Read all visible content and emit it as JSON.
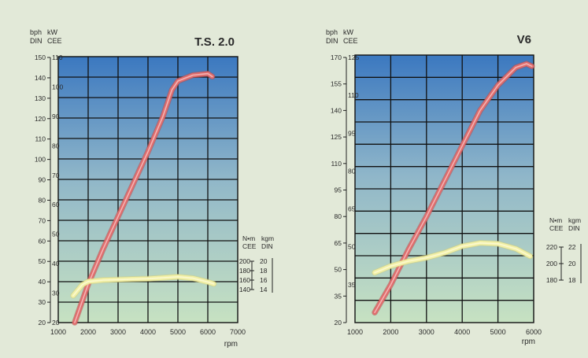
{
  "chart_data": [
    {
      "type": "line",
      "title": "T.S. 2.0",
      "xlabel": "rpm",
      "x_ticks": [
        "1000",
        "2000",
        "3000",
        "4000",
        "5000",
        "6000",
        "7000"
      ],
      "xlim": [
        1000,
        7000
      ],
      "left_axis_units": {
        "outer": [
          "bph",
          "DIN"
        ],
        "inner": [
          "kW",
          "CEE"
        ]
      },
      "left_outer_ticks": [
        "20",
        "30",
        "40",
        "50",
        "60",
        "70",
        "80",
        "90",
        "100",
        "110",
        "120",
        "130",
        "140",
        "150"
      ],
      "left_inner_ticks": [
        "20",
        "30",
        "40",
        "50",
        "60",
        "70",
        "80",
        "90",
        "100",
        "110"
      ],
      "left_outer_range": [
        20,
        150
      ],
      "left_inner_range": [
        20,
        110
      ],
      "torque_axis_units": {
        "outer": [
          "N•m",
          "CEE"
        ],
        "inner": [
          "kgm",
          "DIN"
        ]
      },
      "torque_outer_ticks": [
        "200",
        "180",
        "160",
        "140"
      ],
      "torque_inner_ticks": [
        "20",
        "18",
        "16",
        "14"
      ],
      "grid": true,
      "series": [
        {
          "axis": "power_kw",
          "color": "#e06c6c",
          "points": [
            [
              1550,
              20
            ],
            [
              2000,
              33
            ],
            [
              2500,
              45
            ],
            [
              3000,
              56
            ],
            [
              3500,
              67
            ],
            [
              4000,
              78
            ],
            [
              4500,
              90
            ],
            [
              4800,
              99
            ],
            [
              5000,
              102
            ],
            [
              5500,
              104
            ],
            [
              6000,
              104.5
            ],
            [
              6150,
              103.5
            ]
          ]
        },
        {
          "axis": "torque_nm",
          "color": "#f2f0a6",
          "points": [
            [
              1500,
              127
            ],
            [
              1800,
              150
            ],
            [
              2000,
              157
            ],
            [
              2500,
              160
            ],
            [
              3000,
              161
            ],
            [
              3500,
              162
            ],
            [
              4000,
              163
            ],
            [
              4500,
              165
            ],
            [
              5000,
              167
            ],
            [
              5500,
              164
            ],
            [
              6000,
              156
            ],
            [
              6200,
              152
            ]
          ]
        }
      ]
    },
    {
      "type": "line",
      "title": "V6",
      "xlabel": "rpm",
      "x_ticks": [
        "1000",
        "2000",
        "3000",
        "4000",
        "5000",
        "6000"
      ],
      "xlim": [
        1000,
        6000
      ],
      "left_axis_units": {
        "outer": [
          "bph",
          "DIN"
        ],
        "inner": [
          "kW",
          "CEE"
        ]
      },
      "left_outer_ticks": [
        "20",
        "35",
        "50",
        "65",
        "80",
        "95",
        "110",
        "125",
        "140",
        "155",
        "170"
      ],
      "left_inner_ticks": [
        "35",
        "50",
        "65",
        "80",
        "95",
        "110",
        "125"
      ],
      "left_outer_range": [
        20,
        170
      ],
      "left_inner_range": [
        20,
        125
      ],
      "torque_axis_units": {
        "outer": [
          "N•m",
          "CEE"
        ],
        "inner": [
          "kgm",
          "DIN"
        ]
      },
      "torque_outer_ticks": [
        "220",
        "200",
        "180"
      ],
      "torque_inner_ticks": [
        "22",
        "20",
        "18"
      ],
      "grid": true,
      "series": [
        {
          "axis": "power_kw",
          "color": "#e06c6c",
          "points": [
            [
              1550,
              24
            ],
            [
              2000,
              35
            ],
            [
              2500,
              49
            ],
            [
              3000,
              62
            ],
            [
              3500,
              76
            ],
            [
              4000,
              90
            ],
            [
              4500,
              104
            ],
            [
              5000,
              114
            ],
            [
              5500,
              121
            ],
            [
              5800,
              122.5
            ],
            [
              5950,
              121.5
            ]
          ]
        },
        {
          "axis": "torque_nm",
          "color": "#f2f0a6",
          "points": [
            [
              1550,
              189
            ],
            [
              2000,
              197
            ],
            [
              2500,
              203
            ],
            [
              3000,
              207
            ],
            [
              3500,
              213
            ],
            [
              4000,
              221
            ],
            [
              4500,
              225
            ],
            [
              5000,
              224
            ],
            [
              5500,
              218
            ],
            [
              5900,
              209
            ]
          ]
        }
      ]
    }
  ]
}
